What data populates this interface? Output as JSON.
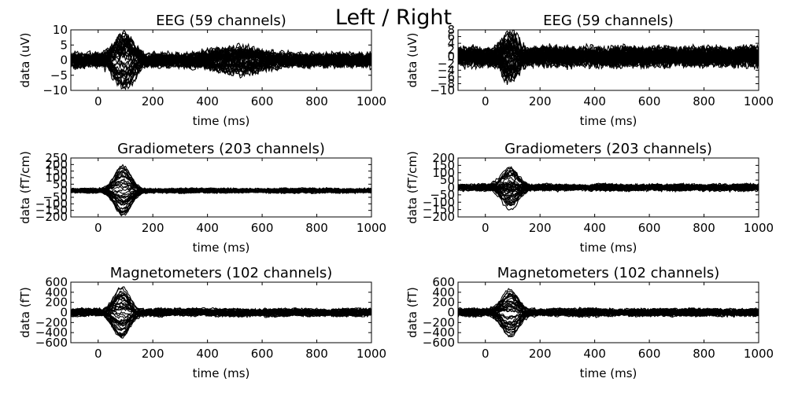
{
  "suptitle": "Left / Right",
  "chart_data": [
    {
      "type": "line",
      "title": "EEG (59 channels)",
      "xlabel": "time (ms)",
      "ylabel": "data (uV)",
      "xlim": [
        -100,
        1000
      ],
      "ylim": [
        -10,
        10
      ],
      "xticks": [
        0,
        200,
        400,
        600,
        800,
        1000
      ],
      "yticks": [
        -10,
        -5,
        0,
        5,
        10
      ],
      "series_count": 59,
      "base_amp": 1.6,
      "noise_amp": 1.5,
      "peaks": [
        {
          "t": 95,
          "width": 35,
          "amp": 8.5
        },
        {
          "t": 520,
          "width": 90,
          "amp": 3.5
        }
      ]
    },
    {
      "type": "line",
      "title": "EEG (59 channels)",
      "xlabel": "time (ms)",
      "ylabel": "data (uV)",
      "xlim": [
        -100,
        1000
      ],
      "ylim": [
        -10,
        8
      ],
      "xticks": [
        0,
        200,
        400,
        600,
        800,
        1000
      ],
      "yticks": [
        -10,
        -8,
        -6,
        -4,
        -2,
        0,
        2,
        4,
        6,
        8
      ],
      "series_count": 59,
      "base_amp": 2.0,
      "noise_amp": 2.0,
      "peaks": [
        {
          "t": 90,
          "width": 30,
          "amp": 6.5
        }
      ]
    },
    {
      "type": "line",
      "title": "Gradiometers (203 channels)",
      "xlabel": "time (ms)",
      "ylabel": "data (fT/cm)",
      "xlim": [
        -100,
        1000
      ],
      "ylim": [
        -200,
        250
      ],
      "xticks": [
        0,
        200,
        400,
        600,
        800,
        1000
      ],
      "yticks": [
        -200,
        -150,
        -100,
        -50,
        0,
        50,
        100,
        150,
        200,
        250
      ],
      "series_count": 203,
      "base_amp": 14,
      "noise_amp": 10,
      "peaks": [
        {
          "t": 90,
          "width": 30,
          "amp": 190
        }
      ]
    },
    {
      "type": "line",
      "title": "Gradiometers (203 channels)",
      "xlabel": "time (ms)",
      "ylabel": "data (fT/cm)",
      "xlim": [
        -100,
        1000
      ],
      "ylim": [
        -200,
        200
      ],
      "xticks": [
        0,
        200,
        400,
        600,
        800,
        1000
      ],
      "yticks": [
        -200,
        -150,
        -100,
        -50,
        0,
        50,
        100,
        150,
        200
      ],
      "series_count": 203,
      "base_amp": 18,
      "noise_amp": 12,
      "peaks": [
        {
          "t": 90,
          "width": 30,
          "amp": 140
        }
      ]
    },
    {
      "type": "line",
      "title": "Magnetometers (102 channels)",
      "xlabel": "time (ms)",
      "ylabel": "data (fT)",
      "xlim": [
        -100,
        1000
      ],
      "ylim": [
        -600,
        600
      ],
      "xticks": [
        0,
        200,
        400,
        600,
        800,
        1000
      ],
      "yticks": [
        -600,
        -400,
        -200,
        0,
        200,
        400,
        600
      ],
      "series_count": 102,
      "base_amp": 70,
      "noise_amp": 30,
      "peaks": [
        {
          "t": 85,
          "width": 30,
          "amp": 520
        }
      ]
    },
    {
      "type": "line",
      "title": "Magnetometers (102 channels)",
      "xlabel": "time (ms)",
      "ylabel": "data (fT)",
      "xlim": [
        -100,
        1000
      ],
      "ylim": [
        -600,
        600
      ],
      "xticks": [
        0,
        200,
        400,
        600,
        800,
        1000
      ],
      "yticks": [
        -600,
        -400,
        -200,
        0,
        200,
        400,
        600
      ],
      "series_count": 102,
      "base_amp": 70,
      "noise_amp": 30,
      "peaks": [
        {
          "t": 90,
          "width": 30,
          "amp": 450
        }
      ]
    }
  ]
}
